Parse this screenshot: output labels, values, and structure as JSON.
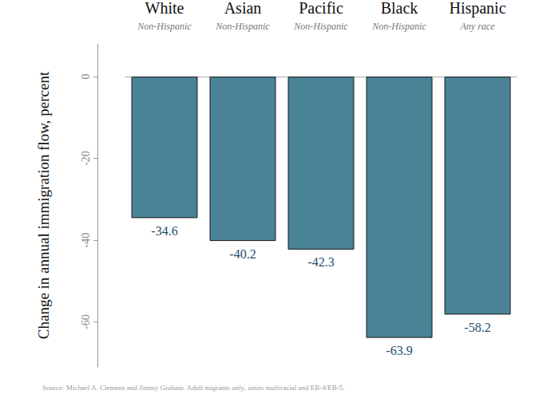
{
  "chart_data": {
    "type": "bar",
    "categories": [
      "White",
      "Asian",
      "Pacific",
      "Black",
      "Hispanic"
    ],
    "category_subtitles": [
      "Non-Hispanic",
      "Non-Hispanic",
      "Non-Hispanic",
      "Non-Hispanic",
      "Any race"
    ],
    "values": [
      -34.6,
      -40.2,
      -42.3,
      -63.9,
      -58.2
    ],
    "color": "#4a8296",
    "y_label": "Change in annual immigration flow, percent",
    "source_note": "Source: Michael A. Clemens and Jimmy Graham. Adult migrants only, omits multiracial and EB-4/EB-5.",
    "ylim": [
      -71,
      8
    ],
    "yticks": [
      0,
      -20,
      -40,
      -60
    ],
    "grid": false,
    "data_labels": true
  }
}
